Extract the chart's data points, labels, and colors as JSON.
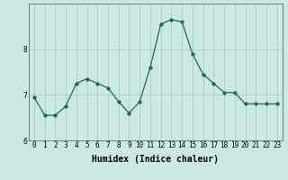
{
  "x": [
    0,
    1,
    2,
    3,
    4,
    5,
    6,
    7,
    8,
    9,
    10,
    11,
    12,
    13,
    14,
    15,
    16,
    17,
    18,
    19,
    20,
    21,
    22,
    23
  ],
  "y": [
    6.95,
    6.55,
    6.55,
    6.75,
    7.25,
    7.35,
    7.25,
    7.15,
    6.85,
    6.6,
    6.85,
    7.6,
    8.55,
    8.65,
    8.6,
    7.9,
    7.45,
    7.25,
    7.05,
    7.05,
    6.8,
    6.8,
    6.8,
    6.8
  ],
  "xlabel": "Humidex (Indice chaleur)",
  "ylim": [
    6.0,
    9.0
  ],
  "xlim": [
    -0.5,
    23.5
  ],
  "yticks": [
    6,
    7,
    8
  ],
  "xtick_labels": [
    "0",
    "1",
    "2",
    "3",
    "4",
    "5",
    "6",
    "7",
    "8",
    "9",
    "10",
    "11",
    "12",
    "13",
    "14",
    "15",
    "16",
    "17",
    "18",
    "19",
    "20",
    "21",
    "22",
    "23"
  ],
  "line_color": "#1a6b5a",
  "marker": "D",
  "marker_size": 1.8,
  "bg_color": "#cce8e4",
  "grid_color": "#aaccc8",
  "axis_color": "#557070",
  "xlabel_fontsize": 7,
  "tick_fontsize": 5.5,
  "line_width": 0.9
}
